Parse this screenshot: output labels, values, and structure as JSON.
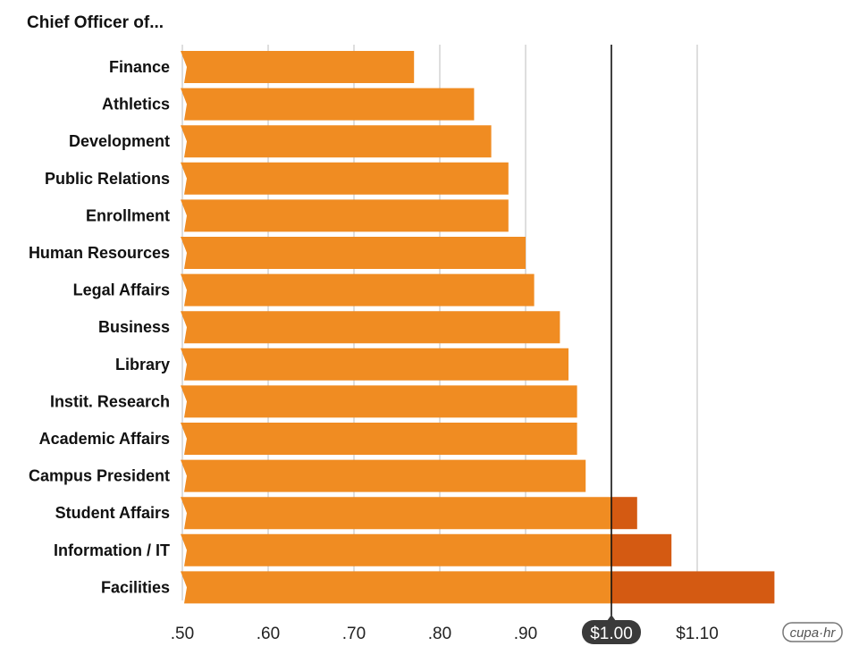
{
  "chart_data": {
    "type": "bar",
    "orientation": "horizontal",
    "title": "Chief Officer of...",
    "categories": [
      "Finance",
      "Athletics",
      "Development",
      "Public Relations",
      "Enrollment",
      "Human Resources",
      "Legal Affairs",
      "Business",
      "Library",
      "Instit. Research",
      "Academic Affairs",
      "Campus President",
      "Student Affairs",
      "Information / IT",
      "Facilities"
    ],
    "values": [
      0.77,
      0.84,
      0.86,
      0.88,
      0.88,
      0.9,
      0.91,
      0.94,
      0.95,
      0.96,
      0.96,
      0.97,
      1.03,
      1.07,
      1.19
    ],
    "xlim": [
      0.5,
      1.2
    ],
    "xticks": [
      0.5,
      0.6,
      0.7,
      0.8,
      0.9,
      1.0,
      1.1
    ],
    "xtick_labels": [
      ".50",
      ".60",
      ".70",
      ".80",
      ".90",
      "$1.00",
      "$1.10"
    ],
    "reference_line": 1.0,
    "highlighted_tick": "$1.00",
    "grid": "vertical",
    "colors": {
      "bar": "#F08C22",
      "bar_above_reference": "#D45A12",
      "grid": "#BDBDBD",
      "reference": "#111111",
      "badge": "#3a3a3a"
    }
  },
  "logo": {
    "text": "cupa·hr"
  }
}
